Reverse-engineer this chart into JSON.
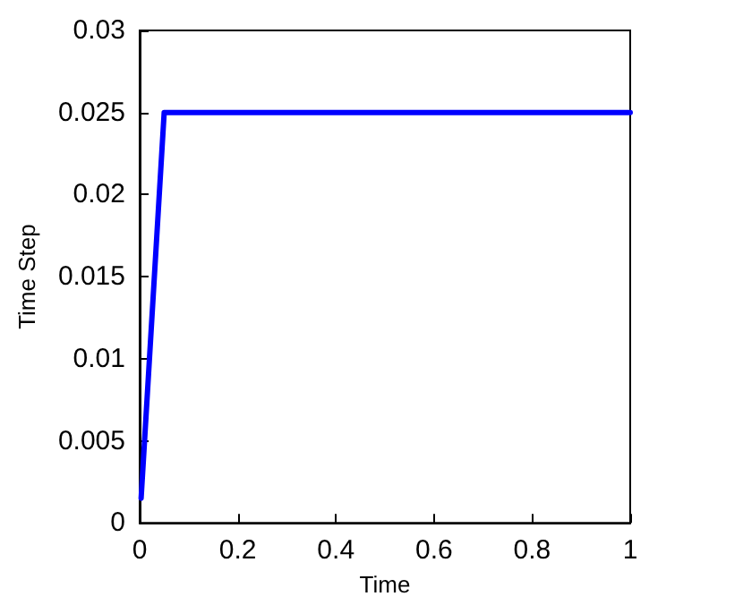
{
  "chart_data": {
    "type": "line",
    "xlabel": "Time",
    "ylabel": "Time Step",
    "x": [
      0.003,
      0.05,
      1
    ],
    "series": [
      {
        "color": "#0000ff",
        "values": [
          0.0015,
          0.025,
          0.025
        ]
      }
    ],
    "xlim": [
      0,
      1
    ],
    "xticks": [
      0,
      0.2,
      0.4,
      0.6,
      0.8,
      1
    ],
    "ylim": [
      0,
      0.03
    ],
    "yticks": [
      0,
      0.005,
      0.01,
      0.015,
      0.02,
      0.025,
      0.03
    ],
    "grid": false,
    "marker": "none",
    "line_style": "solid"
  }
}
